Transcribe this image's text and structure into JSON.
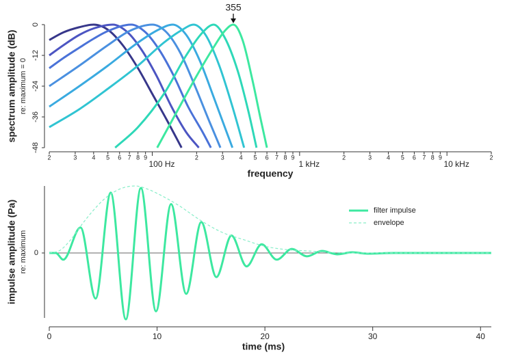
{
  "chart_data": [
    {
      "type": "line",
      "xscale": "log",
      "ylabel": "spectrum amplitude (dB)",
      "ylabel_note": "re: maximum = 0",
      "xlabel": "frequency",
      "xlim": [
        20,
        20000
      ],
      "ylim": [
        -48,
        0
      ],
      "yticks": [
        0,
        -12,
        -24,
        -36,
        -48
      ],
      "grid": false,
      "xticks": [
        {
          "value": 20,
          "label": "2"
        },
        {
          "value": 30,
          "label": "3"
        },
        {
          "value": 40,
          "label": "4"
        },
        {
          "value": 50,
          "label": "5"
        },
        {
          "value": 60,
          "label": "6"
        },
        {
          "value": 70,
          "label": "7"
        },
        {
          "value": 80,
          "label": "8"
        },
        {
          "value": 90,
          "label": "9"
        },
        {
          "value": 100,
          "label": "100 Hz"
        },
        {
          "value": 200,
          "label": "2"
        },
        {
          "value": 300,
          "label": "3"
        },
        {
          "value": 400,
          "label": "4"
        },
        {
          "value": 500,
          "label": "5"
        },
        {
          "value": 600,
          "label": "6"
        },
        {
          "value": 700,
          "label": "7"
        },
        {
          "value": 800,
          "label": "8"
        },
        {
          "value": 900,
          "label": "9"
        },
        {
          "value": 1000,
          "label": "1 kHz"
        },
        {
          "value": 2000,
          "label": "2"
        },
        {
          "value": 3000,
          "label": "3"
        },
        {
          "value": 4000,
          "label": "4"
        },
        {
          "value": 5000,
          "label": "5"
        },
        {
          "value": 6000,
          "label": "6"
        },
        {
          "value": 7000,
          "label": "7"
        },
        {
          "value": 8000,
          "label": "8"
        },
        {
          "value": 9000,
          "label": "9"
        },
        {
          "value": 10000,
          "label": "10 kHz"
        },
        {
          "value": 20000,
          "label": "2"
        }
      ],
      "annotation": 355,
      "series": [
        {
          "color": "#37378a",
          "x": [
            20,
            25,
            32,
            40,
            50,
            63,
            80,
            100,
            125,
            158
          ],
          "values": [
            -6,
            -3,
            -1,
            0,
            -2,
            -8,
            -17,
            -27,
            -37,
            -48
          ]
        },
        {
          "color": "#4c55c2",
          "x": [
            20,
            25,
            32,
            40,
            54,
            68,
            85,
            107,
            135,
            170,
            207
          ],
          "values": [
            -12,
            -8,
            -4,
            -1.5,
            0,
            -3,
            -10,
            -20,
            -32,
            -42,
            -48
          ]
        },
        {
          "color": "#4a72d8",
          "x": [
            20,
            25,
            32,
            40,
            50,
            72,
            90,
            112,
            140,
            175,
            220,
            250
          ],
          "values": [
            -17,
            -13,
            -9,
            -5.5,
            -2.5,
            0,
            -3,
            -10,
            -20,
            -32,
            -42,
            -48
          ]
        },
        {
          "color": "#4a90e0",
          "x": [
            20,
            32,
            50,
            70,
            100,
            125,
            155,
            195,
            245,
            290
          ],
          "values": [
            -24,
            -16,
            -8,
            -2.5,
            0,
            -3,
            -11,
            -24,
            -38,
            -48
          ]
        },
        {
          "color": "#3aaae0",
          "x": [
            20,
            32,
            50,
            80,
            110,
            138,
            170,
            210,
            260,
            320,
            350
          ],
          "values": [
            -32,
            -24,
            -16,
            -7,
            -2,
            0,
            -4,
            -14,
            -28,
            -42,
            -48
          ]
        },
        {
          "color": "#30c4d2",
          "x": [
            20,
            32,
            50,
            80,
            120,
            160,
            191,
            230,
            285,
            350,
            420
          ],
          "values": [
            -40,
            -33,
            -25,
            -16,
            -7,
            -2,
            0,
            -4,
            -16,
            -32,
            -48
          ]
        },
        {
          "color": "#2ed8b8",
          "x": [
            56,
            80,
            120,
            170,
            220,
            261,
            310,
            380,
            450,
            510
          ],
          "values": [
            -48,
            -40,
            -27,
            -12,
            -3,
            0,
            -5,
            -18,
            -34,
            -48
          ]
        },
        {
          "color": "#3de8a0",
          "x": [
            108,
            150,
            200,
            260,
            310,
            355,
            410,
            480,
            540,
            600
          ],
          "values": [
            -48,
            -33,
            -20,
            -9,
            -2.5,
            0,
            -6,
            -22,
            -36,
            -48
          ]
        }
      ]
    },
    {
      "type": "line",
      "ylabel": "impulse amplitude (Pa)",
      "ylabel_note": "re: maximum",
      "xlabel": "time (ms)",
      "xlim": [
        0,
        41
      ],
      "ylim": [
        -1,
        1
      ],
      "xticks": [
        0,
        10,
        20,
        30,
        40
      ],
      "yticks": [
        0
      ],
      "grid": true,
      "legend": "upper right",
      "series": [
        {
          "name": "filter impulse",
          "color": "#3de8a0",
          "x": [
            0,
            0.6,
            1.3,
            2.9,
            4.3,
            5.7,
            7.1,
            8.5,
            9.9,
            11.3,
            12.7,
            14.1,
            15.5,
            16.9,
            18.3,
            19.7,
            21.1,
            22.5,
            23.9,
            25.3,
            26.7,
            28.1,
            29.5,
            32,
            36,
            41
          ],
          "values": [
            0,
            0,
            -0.1,
            0.38,
            -0.68,
            0.9,
            -0.99,
            0.97,
            -0.87,
            0.73,
            -0.61,
            0.46,
            -0.36,
            0.26,
            -0.2,
            0.13,
            -0.1,
            0.06,
            -0.05,
            0.03,
            -0.02,
            0.01,
            -0.01,
            0,
            0,
            0
          ]
        },
        {
          "name": "envelope",
          "color": "#86eec8",
          "dashed": true,
          "x": [
            0,
            1,
            2,
            3,
            4,
            5,
            6,
            7,
            8,
            9,
            10,
            12,
            14,
            16,
            18,
            20,
            22,
            24,
            26,
            28,
            41
          ],
          "values": [
            0,
            0.04,
            0.2,
            0.42,
            0.62,
            0.79,
            0.91,
            0.98,
            1,
            0.96,
            0.89,
            0.71,
            0.49,
            0.31,
            0.2,
            0.1,
            0.05,
            0.03,
            0.01,
            0,
            0
          ]
        }
      ]
    }
  ]
}
